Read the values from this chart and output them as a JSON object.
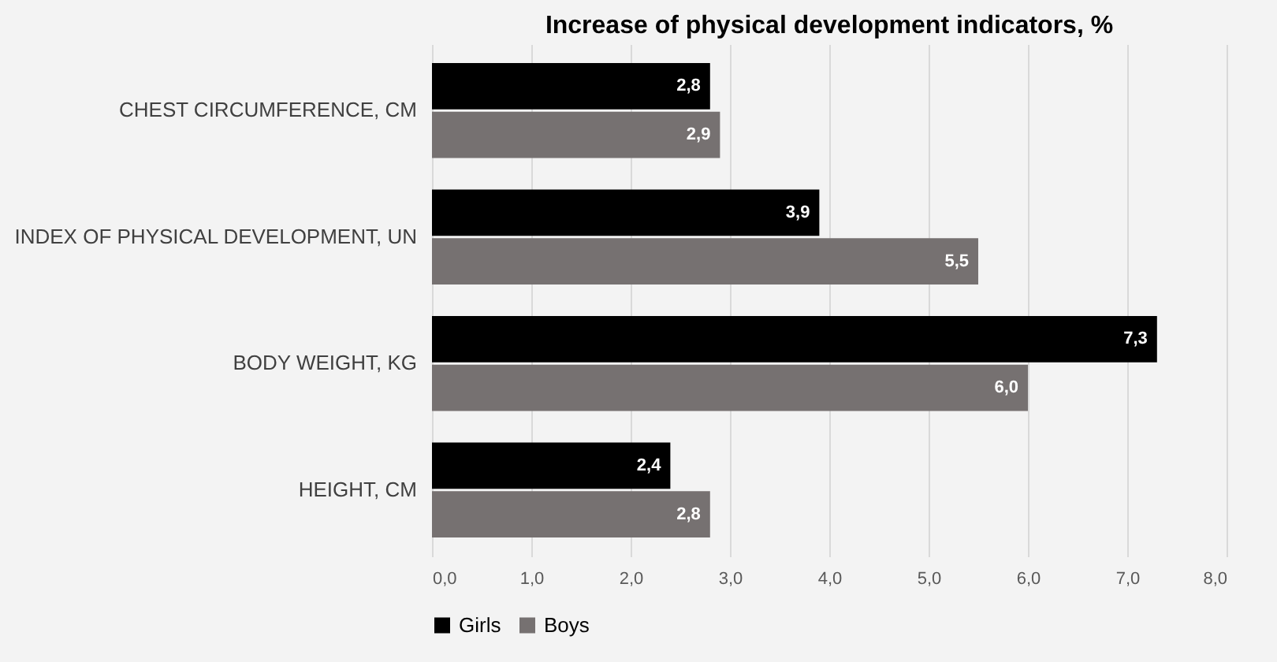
{
  "chart_data": {
    "type": "bar",
    "orientation": "horizontal",
    "title": "Increase of physical development indicators, %",
    "categories": [
      "CHEST CIRCUMFERENCE, CM",
      "INDEX OF PHYSICAL DEVELOPMENT, UN",
      "BODY WEIGHT, KG",
      "HEIGHT, CM"
    ],
    "series": [
      {
        "name": "Girls",
        "color": "#000000",
        "values": [
          2.8,
          3.9,
          7.3,
          2.4
        ],
        "value_labels": [
          "2,8",
          "3,9",
          "7,3",
          "2,4"
        ]
      },
      {
        "name": "Boys",
        "color": "#767171",
        "values": [
          2.9,
          5.5,
          6.0,
          2.8
        ],
        "value_labels": [
          "2,9",
          "5,5",
          "6,0",
          "2,8"
        ]
      }
    ],
    "xlim": [
      0,
      8
    ],
    "xticks": [
      {
        "value": 0,
        "label": "0,0"
      },
      {
        "value": 1,
        "label": "1,0"
      },
      {
        "value": 2,
        "label": "2,0"
      },
      {
        "value": 3,
        "label": "3,0"
      },
      {
        "value": 4,
        "label": "4,0"
      },
      {
        "value": 5,
        "label": "5,0"
      },
      {
        "value": 6,
        "label": "6,0"
      },
      {
        "value": 7,
        "label": "7,0"
      },
      {
        "value": 8,
        "label": "8,0"
      }
    ],
    "grid": "x",
    "legend": "bottom"
  }
}
